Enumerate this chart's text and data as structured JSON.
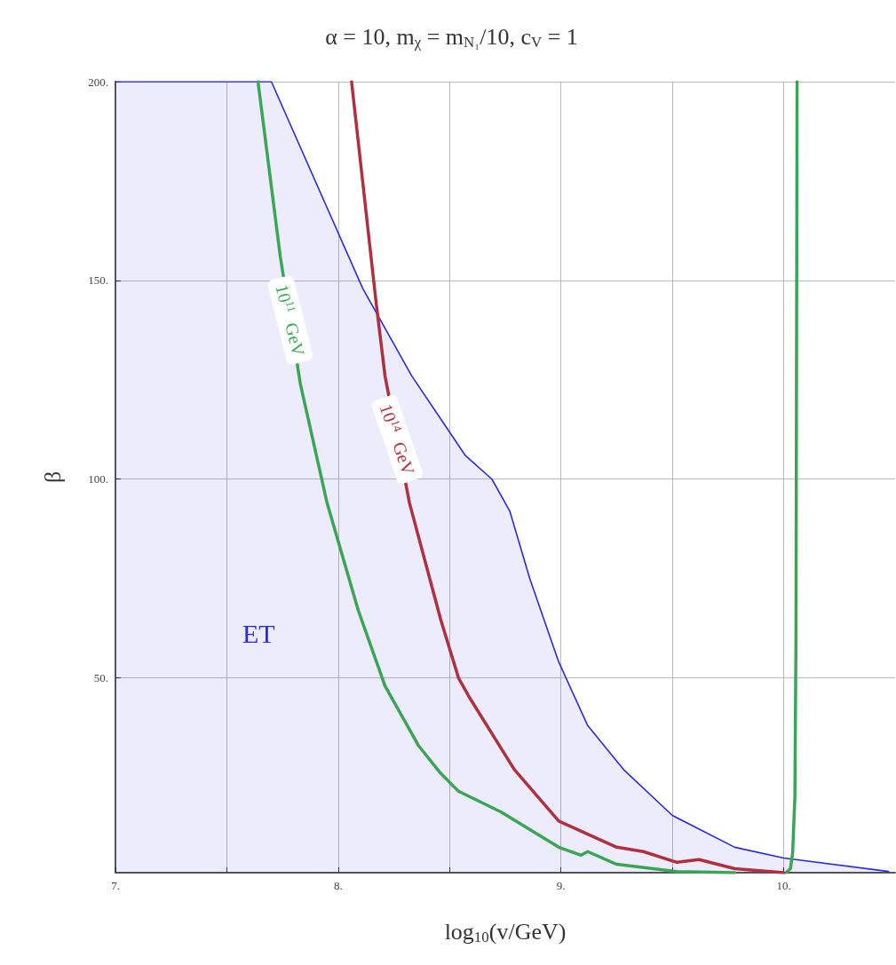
{
  "chart_data": {
    "type": "line",
    "title": "α = 10, m$_{χ}$ = m$_{N₁}$/10, c$_{V}$ = 1",
    "xlabel": "log$_{10}$(v/GeV)",
    "ylabel": "β",
    "xlim": [
      7,
      10.5
    ],
    "xticks": [
      {
        "value": 7,
        "label": "7."
      },
      {
        "value": 7.5,
        "label": null
      },
      {
        "value": 8,
        "label": "8."
      },
      {
        "value": 8.5,
        "label": null
      },
      {
        "value": 9,
        "label": "9."
      },
      {
        "value": 9.5,
        "label": null
      },
      {
        "value": 10,
        "label": "10."
      }
    ],
    "ylim": [
      1,
      200
    ],
    "yticks": [
      {
        "value": 50,
        "label": "50."
      },
      {
        "value": 100,
        "label": "100."
      },
      {
        "value": 150,
        "label": "150."
      },
      {
        "value": 200,
        "label": "200."
      }
    ],
    "grid": true,
    "legend": false,
    "marker": "none",
    "line_style": "solid",
    "annotations": [
      "ET"
    ],
    "series": [
      {
        "type": "area",
        "color": "#2b2bdd",
        "x": [
          7,
          7.7,
          8.11,
          8.33,
          8.57,
          8.69,
          8.77,
          8.86,
          8.99,
          9.12,
          9.28,
          9.5,
          9.78,
          10.0,
          10.47
        ],
        "values": [
          200,
          200,
          148,
          126,
          106,
          100,
          92,
          75,
          54,
          38,
          27,
          15.4,
          7.4,
          4.7,
          1.3
        ]
      },
      {
        "name": "10$^{11}$ GeV",
        "color": "#3aa655",
        "x": [
          7.64,
          7.74,
          7.83,
          7.95,
          8.09,
          8.21,
          8.36,
          8.46,
          8.54,
          8.73,
          8.99,
          9.09,
          9.12,
          9.25,
          9.52,
          9.78
        ],
        "values": [
          200,
          156,
          124,
          94,
          67,
          48,
          33,
          26,
          21.5,
          16.3,
          7.4,
          5.4,
          6.3,
          3.1,
          1.3,
          1
        ]
      },
      {
        "color": "#3aa655",
        "x": [
          10.01,
          10.03,
          10.04,
          10.05,
          10.055,
          10.06
        ],
        "values": [
          1,
          2,
          6,
          20,
          60,
          200
        ]
      },
      {
        "name": "10$^{14}$ GeV",
        "color": "#b0303f",
        "x": [
          8.06,
          8.17,
          8.21,
          8.32,
          8.46,
          8.54,
          8.59,
          8.79,
          8.99,
          9.25,
          9.37,
          9.52,
          9.62,
          9.78,
          10.0
        ],
        "values": [
          200,
          144.5,
          126,
          94,
          64.7,
          50,
          45,
          27,
          14,
          7.4,
          6.3,
          3.6,
          4.3,
          2,
          1
        ]
      }
    ]
  }
}
